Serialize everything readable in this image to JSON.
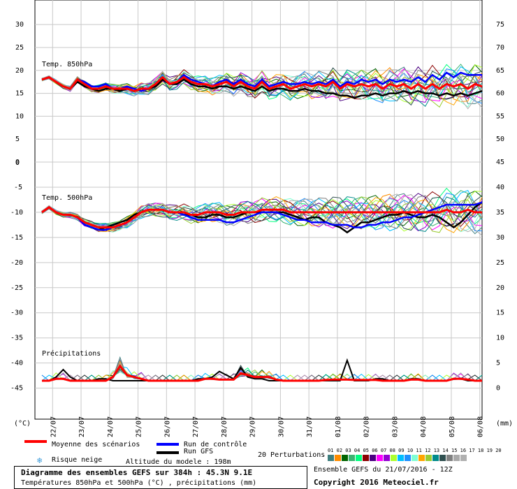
{
  "chart_data": {
    "type": "line",
    "title": "Diagramme des ensembles GEFS sur 384h : 45.3N 9.1E",
    "subtitle": "Températures 850hPa et 500hPa (°C) , précipitations (mm)",
    "x_ticks": [
      "22/07",
      "23/07",
      "24/07",
      "25/07",
      "26/07",
      "27/07",
      "28/07",
      "29/07",
      "30/07",
      "31/07",
      "01/08",
      "02/08",
      "03/08",
      "04/08",
      "05/08",
      "06/08"
    ],
    "left_unit": "(°C)",
    "right_unit": "(mm)",
    "panels": [
      {
        "label": "Temp. 850hPa",
        "left_ticks": [
          "30",
          "25",
          "20",
          "15",
          "10",
          "5",
          "0"
        ],
        "right_ticks": [
          "75",
          "70",
          "65",
          "60",
          "55",
          "50"
        ],
        "ylim": [
          0,
          32
        ],
        "series": [
          {
            "name": "Moyenne des scénarios",
            "color": "#ff0000",
            "values": [
              18,
              18.5,
              17.5,
              16.5,
              16,
              18,
              17,
              16,
              16,
              16.5,
              16,
              16,
              16,
              15.5,
              16,
              16,
              17,
              18.5,
              17,
              17.5,
              18.5,
              17.5,
              17,
              17,
              16.5,
              17,
              17.5,
              16.5,
              17.5,
              16.5,
              16,
              17.5,
              16,
              16.5,
              17,
              16,
              16.5,
              17,
              16.5,
              17,
              16.5,
              17.5,
              16,
              17,
              16.5,
              17,
              16.5,
              17,
              16,
              17,
              16.5,
              17,
              16,
              17,
              16,
              17,
              16,
              17,
              16.5,
              17,
              16,
              17,
              16.5
            ]
          },
          {
            "name": "Run de contrôle",
            "color": "#0000ff",
            "values": [
              18,
              18.5,
              17.5,
              16.5,
              16,
              18,
              17.5,
              16.5,
              16.5,
              17,
              16,
              16,
              16.5,
              16,
              15.5,
              16,
              17,
              18.5,
              17,
              17.5,
              19,
              18,
              17.5,
              17,
              16.5,
              17.5,
              18,
              17,
              18,
              17,
              16.5,
              18,
              16.5,
              17,
              17.5,
              17,
              17,
              17.5,
              17,
              17.5,
              17,
              18,
              16.5,
              17.5,
              17,
              18,
              17.5,
              18,
              17,
              18,
              17.5,
              18,
              17.5,
              18.5,
              17.5,
              19,
              18,
              19.5,
              18.5,
              19.5,
              19,
              19,
              19
            ]
          },
          {
            "name": "Run GFS",
            "color": "#000000",
            "values": [
              18,
              18.5,
              17.5,
              16.5,
              16,
              17.5,
              16.5,
              16,
              15.5,
              16,
              16,
              15.5,
              16,
              15.5,
              16,
              16,
              16.5,
              18,
              17,
              17,
              18,
              17,
              16.5,
              16.5,
              16,
              16.5,
              16.5,
              16,
              16.5,
              16,
              15.5,
              16.5,
              15.5,
              16,
              16,
              15.5,
              15.5,
              16,
              15.5,
              15.5,
              15,
              15,
              14.5,
              14.5,
              14,
              14.5,
              14.5,
              15,
              14.5,
              15,
              15,
              15.5,
              15,
              15.5,
              15,
              15,
              14.5,
              15,
              14.5,
              15,
              14.5,
              15,
              15.5
            ]
          }
        ]
      },
      {
        "label": "Temp. 500hPa",
        "left_ticks": [
          "0",
          "-5",
          "-10",
          "-15",
          "-20",
          "-25",
          "-30",
          "-35",
          "-40",
          "-45"
        ],
        "right_ticks": [
          "45",
          "40",
          "35",
          "30",
          "25",
          "20",
          "15",
          "10",
          "5",
          "0"
        ],
        "ylim": [
          -47,
          0
        ],
        "series": [
          {
            "name": "Moyenne des scénarios",
            "color": "#ff0000",
            "values": [
              -10,
              -9,
              -10,
              -10.5,
              -10.5,
              -11,
              -12,
              -12.5,
              -13,
              -13,
              -13,
              -12.5,
              -12,
              -11,
              -10,
              -9.5,
              -9.5,
              -9.5,
              -10,
              -10,
              -10,
              -10.5,
              -10.5,
              -10,
              -10,
              -10,
              -10.5,
              -10.5,
              -10,
              -10,
              -10,
              -9.5,
              -9.5,
              -9.5,
              -9.5,
              -10,
              -10,
              -10,
              -10,
              -10,
              -10,
              -10,
              -10,
              -10,
              -10,
              -10,
              -10,
              -10,
              -10,
              -10,
              -10,
              -10,
              -10,
              -10,
              -10,
              -10,
              -10,
              -9.5,
              -10,
              -10,
              -9.5,
              -10,
              -10
            ]
          },
          {
            "name": "Run de contrôle",
            "color": "#0000ff",
            "values": [
              -10,
              -9,
              -10,
              -10.5,
              -10.5,
              -11,
              -12.5,
              -13,
              -13.5,
              -13.5,
              -13,
              -12.5,
              -12,
              -11,
              -10,
              -9.5,
              -9.5,
              -9.5,
              -10,
              -10,
              -10.5,
              -11,
              -11.5,
              -11.5,
              -11.5,
              -11.5,
              -12,
              -12,
              -11.5,
              -11,
              -10.5,
              -10,
              -10,
              -10,
              -10.5,
              -11,
              -11.5,
              -11.5,
              -12,
              -12,
              -12,
              -12.5,
              -12.5,
              -12.5,
              -13,
              -13,
              -12.5,
              -12.5,
              -12,
              -12,
              -11.5,
              -11,
              -11,
              -10.5,
              -10,
              -9.5,
              -9,
              -8.5,
              -8.5,
              -8.5,
              -8.5,
              -8.5,
              -8
            ]
          },
          {
            "name": "Run GFS",
            "color": "#000000",
            "values": [
              -10,
              -9,
              -10,
              -10.5,
              -10.5,
              -11,
              -12.5,
              -13,
              -13.5,
              -13,
              -12.5,
              -12,
              -11.5,
              -10.5,
              -10,
              -9.5,
              -9.5,
              -9.5,
              -10,
              -10,
              -10.5,
              -10.5,
              -11,
              -11,
              -10.5,
              -10.5,
              -11,
              -11,
              -10.5,
              -10,
              -10,
              -10,
              -10,
              -10,
              -10,
              -10.5,
              -11,
              -11.5,
              -11,
              -11,
              -12,
              -12.5,
              -13,
              -14,
              -13,
              -12,
              -12,
              -11.5,
              -11,
              -10.5,
              -10.5,
              -10,
              -10.5,
              -11,
              -11,
              -10.5,
              -11,
              -12,
              -13,
              -12,
              -10.5,
              -9,
              -8
            ]
          }
        ]
      },
      {
        "label": "Précipitations",
        "right_ticks": [
          "15",
          "10",
          "5",
          "0"
        ],
        "ylim": [
          0,
          16
        ],
        "series": [
          {
            "name": "Moyenne des scénarios",
            "color": "#ff0000",
            "values": [
              0,
              0,
              0.5,
              0.5,
              0,
              0,
              0,
              0,
              0,
              0,
              1,
              4,
              1.5,
              1,
              0.5,
              0,
              0,
              0,
              0,
              0,
              0,
              0,
              0,
              0.5,
              0.5,
              0.3,
              0.3,
              0.3,
              2,
              1.5,
              1,
              1,
              1,
              0.3,
              0,
              0,
              0,
              0,
              0,
              0,
              0.2,
              0.3,
              0.3,
              0.3,
              0.2,
              0.2,
              0.2,
              0.2,
              0,
              0,
              0,
              0,
              0.3,
              0.3,
              0,
              0,
              0,
              0,
              0.5,
              0.5,
              0.3,
              0,
              0
            ]
          },
          {
            "name": "Run GFS",
            "color": "#000000",
            "values": [
              0,
              0,
              1,
              3,
              1,
              0,
              0,
              0,
              0.5,
              0.5,
              0,
              0,
              0,
              0,
              0,
              0,
              0,
              0,
              0,
              0,
              0,
              0,
              0.5,
              0.5,
              1,
              2.5,
              1.5,
              0.5,
              3.5,
              1,
              0.5,
              0.5,
              0,
              0,
              0,
              0,
              0,
              0,
              0,
              0,
              0,
              0,
              0,
              5.5,
              0,
              0,
              0,
              0.5,
              0.5,
              0,
              0,
              0,
              0.5,
              0.5,
              0,
              0,
              0,
              0,
              0.5,
              0.5,
              0,
              0,
              0
            ]
          }
        ]
      }
    ],
    "perturbation_colors": [
      "#3f7f7f",
      "#ff8c00",
      "#006400",
      "#3cb371",
      "#00ff7f",
      "#8b0000",
      "#4b0082",
      "#ff00ff",
      "#9400d3",
      "#adff2f",
      "#00bfff",
      "#1e90ff",
      "#7fffd4",
      "#ffa500",
      "#9acd32",
      "#008b8b",
      "#2f4f4f",
      "#808080",
      "#a9a9a9",
      "#b0b0b0"
    ]
  },
  "legend": {
    "mean_label": "Moyenne des scénarios",
    "control_label": "Run de contrôle",
    "gfs_label": "Run GFS",
    "perturbations_label": "20 Perturbations",
    "perturbation_numbers": "01 02 03 04 05 06 07 08 09 10 11 12 13 14 15 16 17 18 19 20",
    "snow_label": "Risque neige",
    "altitude_label": "Altitude du modele : 198m",
    "mean_color": "#ff0000",
    "control_color": "#0000ff",
    "gfs_color": "#000000"
  },
  "footer": {
    "title": "Diagramme des ensembles GEFS sur 384h : 45.3N 9.1E",
    "subtitle": "Températures 850hPa et 500hPa (°C) , précipitations (mm)",
    "run": "Ensemble GEFS du 21/07/2016 - 12Z",
    "copyright": "Copyright 2016 Meteociel.fr"
  }
}
